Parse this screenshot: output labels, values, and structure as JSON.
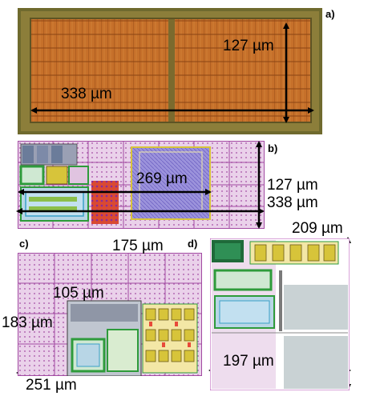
{
  "panels": {
    "a": {
      "label": "a)",
      "width_label": "338 µm",
      "height_label": "127 µm"
    },
    "b": {
      "label": "b)",
      "width_label_inner": "269 µm",
      "height_label": "127 µm",
      "width_label_outer": "338 µm"
    },
    "c": {
      "label": "c)",
      "height_label_outer": "175 µm",
      "height_label_inner": "105 µm",
      "width_label_inner": "183 µm",
      "width_label_outer": "251 µm"
    },
    "d": {
      "label": "d)",
      "height_label": "209 µm",
      "width_label": "197 µm"
    }
  },
  "colors": {
    "die_copper": "#c8742a",
    "die_border": "#6d6a2c",
    "layout_pink": "#e6b7e6",
    "grid_line": "#b34ab3",
    "grey_block": "#c9d2d4",
    "green_rect": "#2e9b3b",
    "yellow": "#d7c43a",
    "blue_block": "#8f86d8",
    "red_block": "#d8412d",
    "arrow": "#000000"
  }
}
